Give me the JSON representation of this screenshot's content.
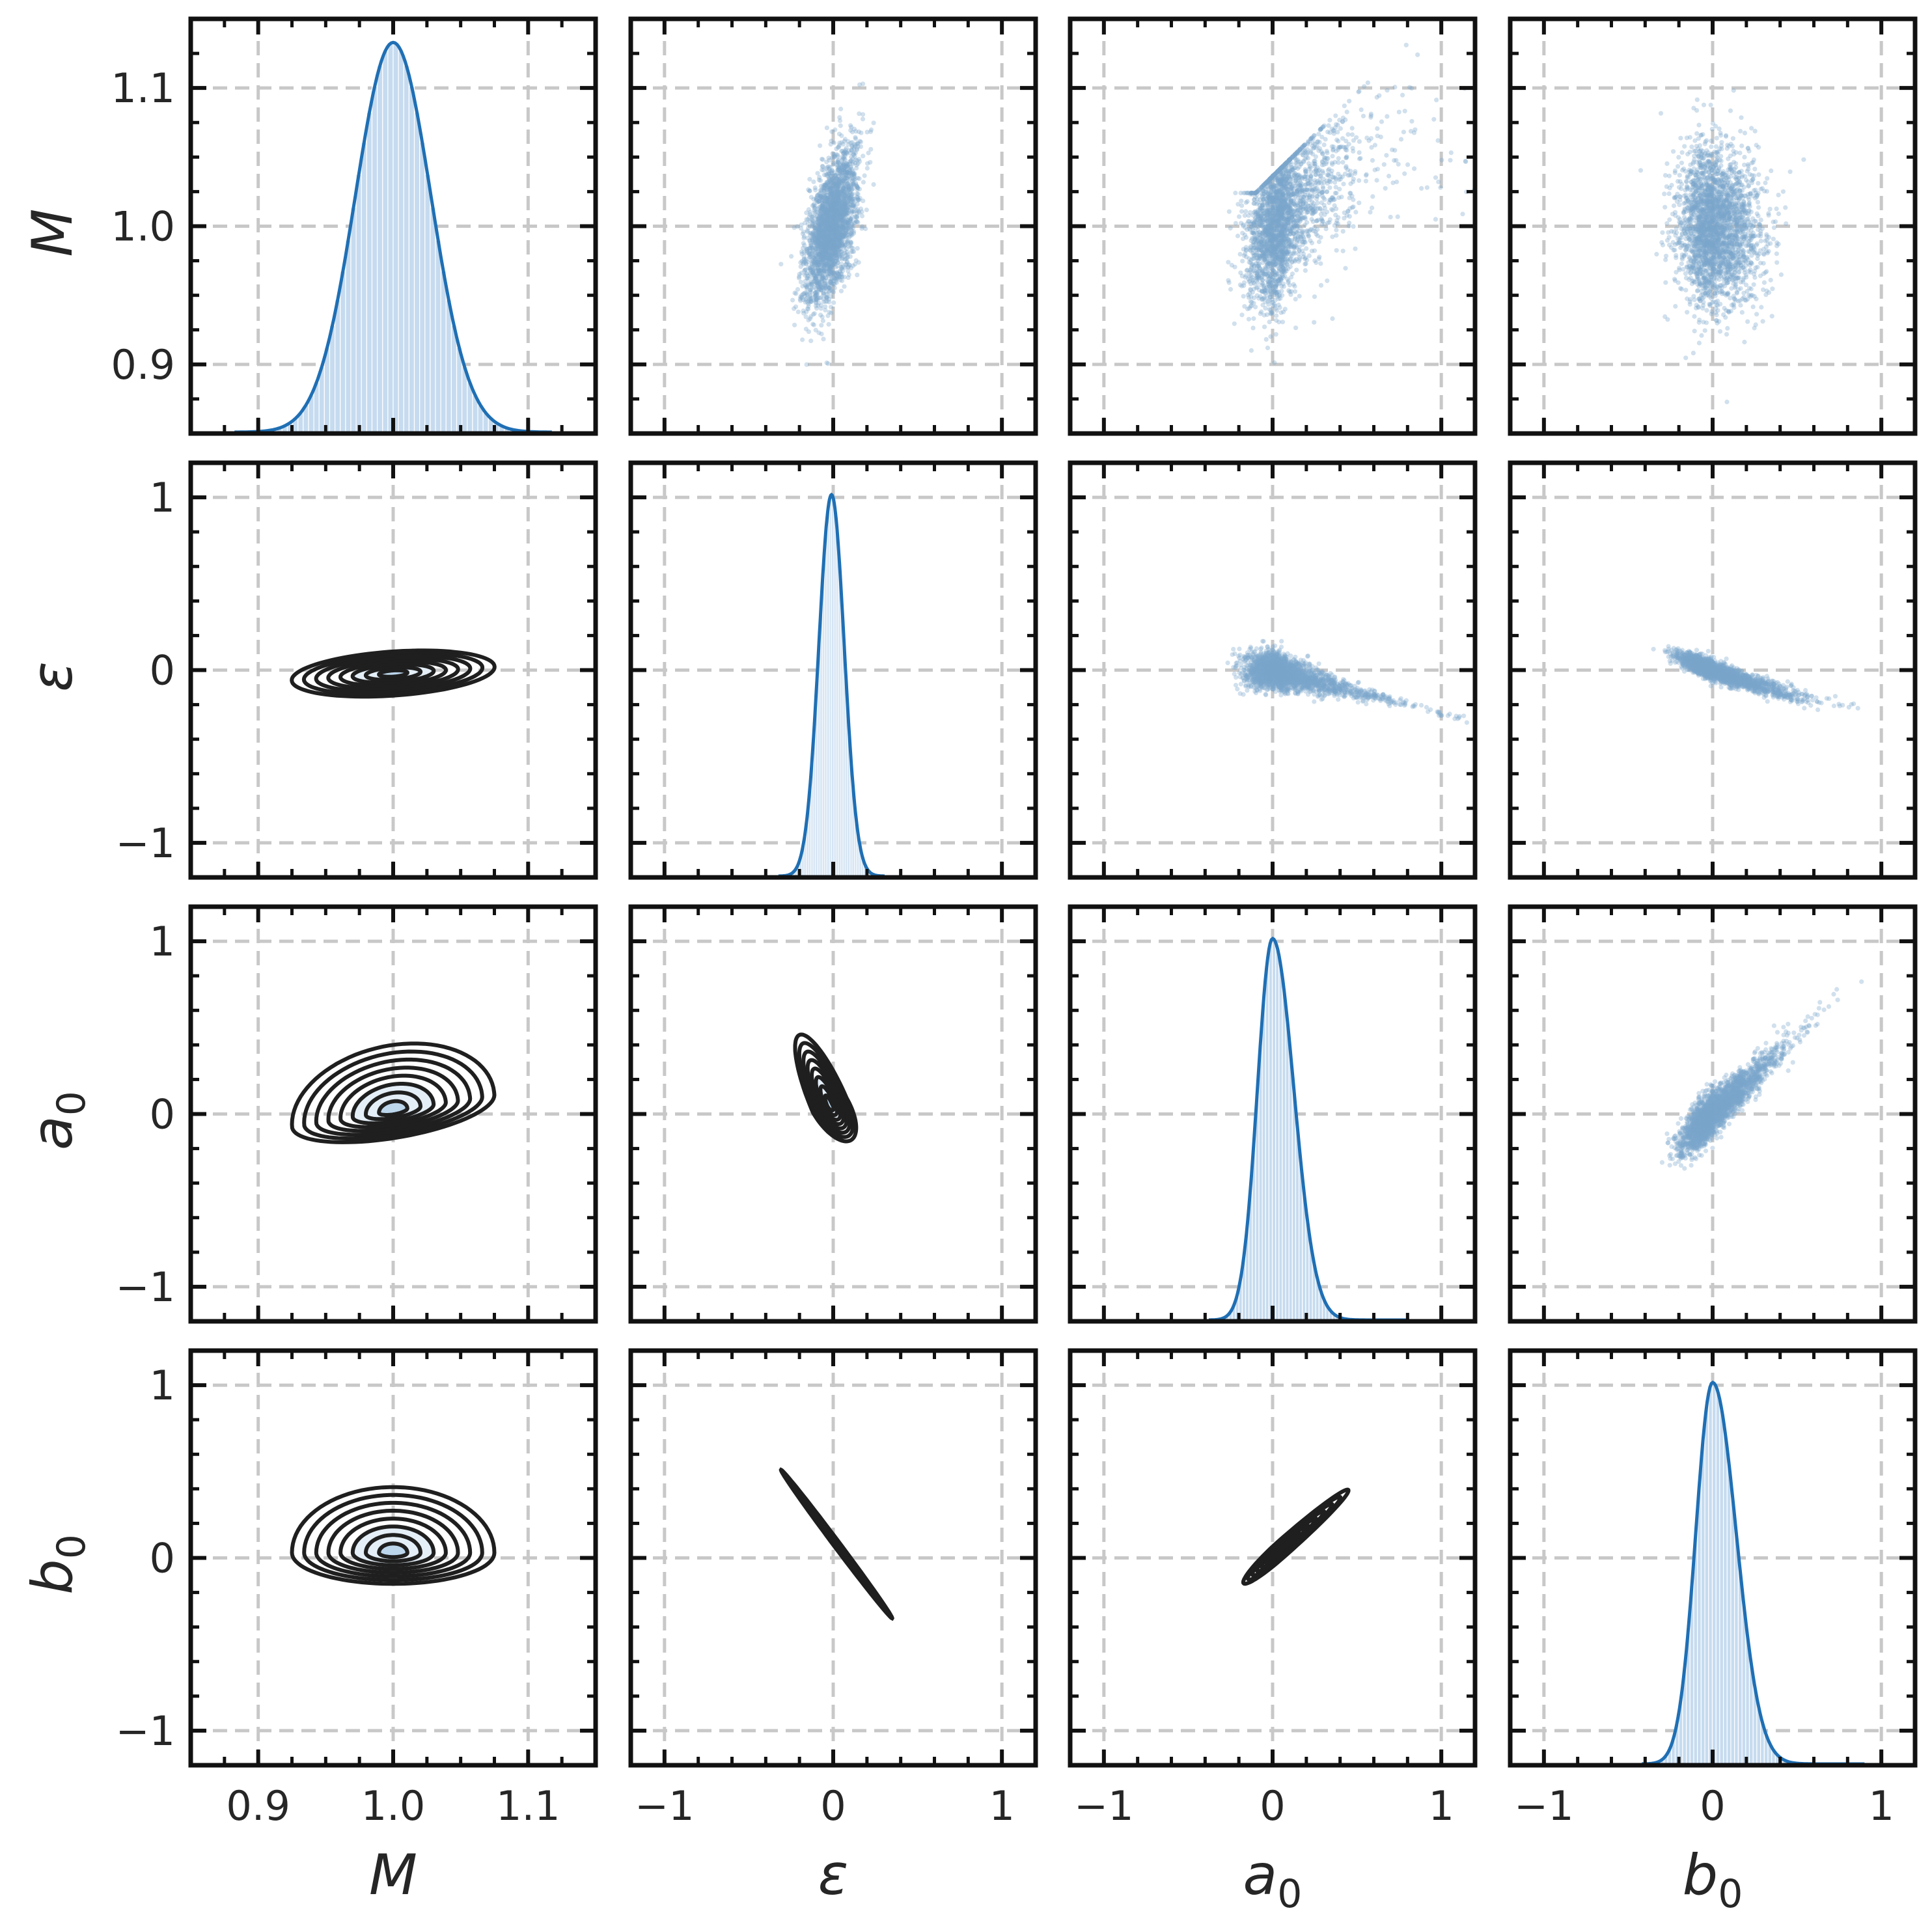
{
  "chart_data": {
    "type": "pairplot",
    "variables": [
      {
        "key": "M",
        "label": "M",
        "sub": "",
        "range": [
          0.85,
          1.15
        ],
        "ticks": [
          0.9,
          1.0,
          1.1
        ],
        "tick_labels": [
          "0.9",
          "1.0",
          "1.1"
        ],
        "minor": [
          0.85,
          0.875,
          0.925,
          0.95,
          0.975,
          1.025,
          1.05,
          1.075,
          1.125,
          1.15
        ]
      },
      {
        "key": "eps",
        "label": "ε",
        "sub": "",
        "range": [
          -1.2,
          1.2
        ],
        "ticks": [
          -1,
          0,
          1
        ],
        "tick_labels": [
          "−1",
          "0",
          "1"
        ],
        "minor": [
          -0.8,
          -0.6,
          -0.4,
          -0.2,
          0.2,
          0.4,
          0.6,
          0.8
        ]
      },
      {
        "key": "a0",
        "label": "a",
        "sub": "0",
        "range": [
          -1.2,
          1.2
        ],
        "ticks": [
          -1,
          0,
          1
        ],
        "tick_labels": [
          "−1",
          "0",
          "1"
        ],
        "minor": [
          -0.8,
          -0.6,
          -0.4,
          -0.2,
          0.2,
          0.4,
          0.6,
          0.8
        ]
      },
      {
        "key": "b0",
        "label": "b",
        "sub": "0",
        "range": [
          -1.2,
          1.2
        ],
        "ticks": [
          -1,
          0,
          1
        ],
        "tick_labels": [
          "−1",
          "0",
          "1"
        ],
        "minor": [
          -0.8,
          -0.6,
          -0.4,
          -0.2,
          0.2,
          0.4,
          0.6,
          0.8
        ]
      }
    ],
    "diagonal": "histogram + kde",
    "upper": "scatter",
    "lower": "kde contours",
    "distributions": {
      "M": {
        "mean": 1.0,
        "sd": 0.028,
        "skew": 0.0,
        "peak_density_frac": 0.94
      },
      "eps": {
        "mean": -0.01,
        "sd": 0.075,
        "skew": 0.0,
        "peak_density_frac": 0.92
      },
      "a0": {
        "mean": 0.0,
        "sd": 0.09,
        "skew": 0.6,
        "peak_density_frac": 0.92
      },
      "b0": {
        "mean": 0.0,
        "sd": 0.1,
        "skew": 0.6,
        "peak_density_frac": 0.92
      }
    },
    "colors": {
      "scatter": "#7ba7cc",
      "kde_line": "#1f6fb4",
      "hist": "#c6dbef",
      "contour": "#1f1f1f",
      "contour_fill": "#bcd6ec",
      "grid": "#c8c8c8",
      "frame": "#111111",
      "text": "#262626"
    }
  }
}
